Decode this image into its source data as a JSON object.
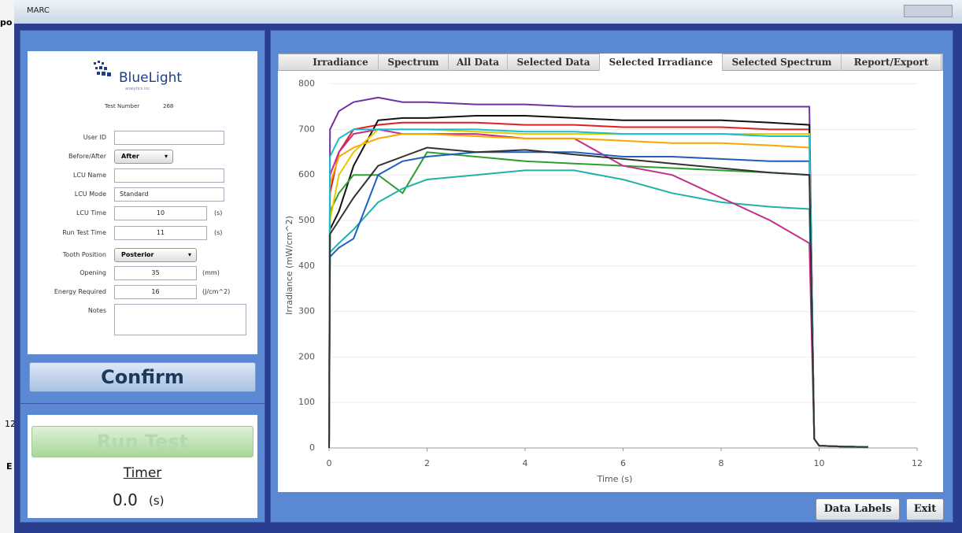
{
  "window": {
    "title": "MARC"
  },
  "background_window": {
    "texts": [
      "po",
      "12",
      "E"
    ]
  },
  "form": {
    "logo": {
      "name": "BlueLight",
      "tagline": "analytics inc"
    },
    "test_number": {
      "label": "Test Number",
      "value": "268"
    },
    "fields": [
      {
        "label": "User ID",
        "kind": "text"
      },
      {
        "label": "Before/After",
        "kind": "select",
        "value": "After"
      },
      {
        "label": "LCU Name",
        "kind": "text"
      },
      {
        "label": "LCU Mode",
        "kind": "text",
        "value": "Standard"
      },
      {
        "label": "LCU Time",
        "kind": "number",
        "value": "10",
        "unit": "(s)"
      },
      {
        "label": "Run Test Time",
        "kind": "number",
        "value": "11",
        "unit": "(s)"
      },
      {
        "label": "Tooth Position",
        "kind": "select",
        "value": "Posterior"
      },
      {
        "label": "Opening",
        "kind": "number",
        "value": "35",
        "unit": "(mm)"
      },
      {
        "label": "Energy Required",
        "kind": "number",
        "value": "16",
        "unit": "(J/cm^2)"
      },
      {
        "label": "Notes",
        "kind": "textarea"
      }
    ],
    "confirm_button": "Confirm"
  },
  "run_panel": {
    "run_button": "Run Test",
    "timer_label": "Timer",
    "timer_value": "0.0",
    "timer_unit": "(s)"
  },
  "tabs": {
    "items": [
      "Irradiance",
      "Spectrum",
      "All Data",
      "Selected Data",
      "Selected Irradiance",
      "Selected Spectrum",
      "Report/Export"
    ],
    "selected": 4
  },
  "buttons": [
    "Data Labels",
    "Exit"
  ],
  "chart_data": {
    "type": "line",
    "xlabel": "Time (s)",
    "ylabel": "Irradiance (mW/cm^2)",
    "x": [
      0,
      0.02,
      0.2,
      0.5,
      1,
      1.5,
      2,
      3,
      4,
      5,
      6,
      7,
      8,
      9,
      9.8,
      9.9,
      10,
      10.5,
      11
    ],
    "xlim": [
      0,
      12
    ],
    "xticks": [
      0,
      2,
      4,
      6,
      8,
      10,
      12
    ],
    "ylim": [
      0,
      820
    ],
    "yticks": [
      0,
      100,
      200,
      300,
      400,
      500,
      600,
      700,
      800
    ],
    "grid": true,
    "series": [
      {
        "color": "#7030a0",
        "values": [
          0,
          700,
          740,
          760,
          770,
          760,
          760,
          755,
          755,
          750,
          750,
          750,
          750,
          750,
          750,
          20,
          5,
          3,
          2
        ]
      },
      {
        "color": "#e02020",
        "values": [
          0,
          560,
          650,
          700,
          710,
          715,
          715,
          715,
          710,
          710,
          705,
          705,
          705,
          700,
          700,
          20,
          5,
          3,
          2
        ]
      },
      {
        "color": "#111111",
        "values": [
          0,
          480,
          520,
          620,
          720,
          725,
          725,
          730,
          730,
          725,
          720,
          720,
          720,
          715,
          710,
          20,
          5,
          3,
          2
        ]
      },
      {
        "color": "#2ca02c",
        "values": [
          0,
          520,
          560,
          600,
          600,
          560,
          650,
          640,
          630,
          625,
          620,
          615,
          610,
          605,
          600,
          20,
          5,
          3,
          2
        ]
      },
      {
        "color": "#20b2aa",
        "values": [
          0,
          430,
          450,
          480,
          540,
          570,
          590,
          600,
          610,
          610,
          590,
          560,
          540,
          530,
          525,
          20,
          5,
          3,
          2
        ]
      },
      {
        "color": "#c0308a",
        "values": [
          0,
          600,
          650,
          690,
          700,
          690,
          690,
          690,
          680,
          680,
          620,
          600,
          550,
          500,
          450,
          20,
          5,
          3,
          2
        ]
      },
      {
        "color": "#ffa500",
        "values": [
          0,
          580,
          640,
          660,
          680,
          690,
          690,
          685,
          680,
          680,
          675,
          670,
          670,
          665,
          660,
          20,
          5,
          3,
          2
        ]
      },
      {
        "color": "#1f5fbf",
        "values": [
          0,
          420,
          440,
          460,
          600,
          630,
          640,
          650,
          650,
          650,
          640,
          640,
          635,
          630,
          630,
          20,
          5,
          3,
          2
        ]
      },
      {
        "color": "#e6c800",
        "values": [
          0,
          500,
          600,
          650,
          700,
          700,
          700,
          695,
          690,
          690,
          690,
          690,
          690,
          690,
          690,
          20,
          5,
          3,
          2
        ]
      },
      {
        "color": "#17becf",
        "values": [
          0,
          640,
          680,
          700,
          700,
          700,
          700,
          700,
          695,
          695,
          690,
          690,
          690,
          685,
          685,
          20,
          5,
          3,
          2
        ]
      },
      {
        "color": "#333333",
        "values": [
          0,
          470,
          500,
          550,
          620,
          640,
          660,
          650,
          655,
          645,
          635,
          625,
          615,
          605,
          600,
          20,
          5,
          3,
          2
        ]
      }
    ]
  }
}
